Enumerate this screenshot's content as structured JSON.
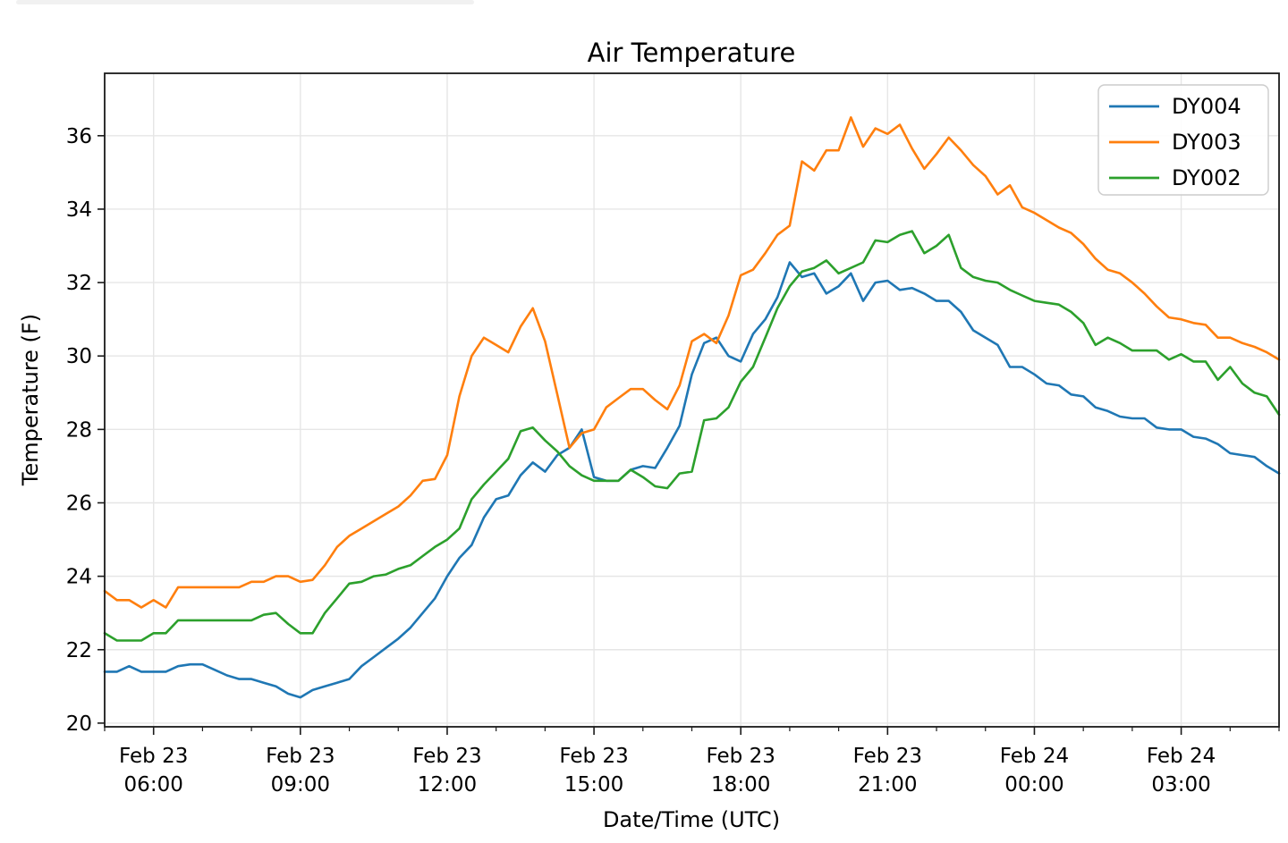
{
  "decoration": {
    "top_bar_color": "#f1f1f1"
  },
  "chart_data": {
    "type": "line",
    "title": "Air Temperature",
    "xlabel": "Date/Time (UTC)",
    "ylabel": "Temperature (F)",
    "grid": true,
    "grid_color": "#e6e6e6",
    "spine_color": "#1a1a1a",
    "background": "#ffffff",
    "xlim_hours": [
      5,
      29
    ],
    "ylim": [
      19.9,
      37.7
    ],
    "yticks": [
      20,
      22,
      24,
      26,
      28,
      30,
      32,
      34,
      36
    ],
    "xticks": [
      {
        "hour": 6,
        "line1": "Feb 23",
        "line2": "06:00"
      },
      {
        "hour": 9,
        "line1": "Feb 23",
        "line2": "09:00"
      },
      {
        "hour": 12,
        "line1": "Feb 23",
        "line2": "12:00"
      },
      {
        "hour": 15,
        "line1": "Feb 23",
        "line2": "15:00"
      },
      {
        "hour": 18,
        "line1": "Feb 23",
        "line2": "18:00"
      },
      {
        "hour": 21,
        "line1": "Feb 23",
        "line2": "21:00"
      },
      {
        "hour": 24,
        "line1": "Feb 24",
        "line2": "00:00"
      },
      {
        "hour": 27,
        "line1": "Feb 24",
        "line2": "03:00"
      }
    ],
    "minor_xtick_every_hours": 1,
    "x_start_hour": 5,
    "x_step_hours": 0.25,
    "x_start_label": "Feb 23 05:00 UTC",
    "x_end_label": "Feb 24 05:00 UTC",
    "legend": {
      "position": "upper-right",
      "entries": [
        {
          "label": "DY004",
          "color": "#1f77b4"
        },
        {
          "label": "DY003",
          "color": "#ff7f0e"
        },
        {
          "label": "DY002",
          "color": "#2ca02c"
        }
      ]
    },
    "series": [
      {
        "name": "DY004",
        "color": "#1f77b4",
        "values": [
          21.4,
          21.4,
          21.55,
          21.4,
          21.4,
          21.4,
          21.55,
          21.6,
          21.6,
          21.45,
          21.3,
          21.2,
          21.2,
          21.1,
          21.0,
          20.8,
          20.7,
          20.9,
          21.0,
          21.1,
          21.2,
          21.55,
          21.8,
          22.05,
          22.3,
          22.6,
          23.0,
          23.4,
          24.0,
          24.5,
          24.85,
          25.6,
          26.1,
          26.2,
          26.75,
          27.1,
          26.85,
          27.3,
          27.5,
          28.0,
          26.7,
          26.6,
          26.6,
          26.9,
          27.0,
          26.95,
          27.5,
          28.1,
          29.5,
          30.35,
          30.5,
          30.0,
          29.85,
          30.6,
          31.0,
          31.6,
          32.55,
          32.15,
          32.25,
          31.7,
          31.9,
          32.25,
          31.5,
          32.0,
          32.05,
          31.8,
          31.85,
          31.7,
          31.5,
          31.5,
          31.2,
          30.7,
          30.5,
          30.3,
          29.7,
          29.7,
          29.5,
          29.25,
          29.2,
          28.95,
          28.9,
          28.6,
          28.5,
          28.35,
          28.3,
          28.3,
          28.05,
          28.0,
          28.0,
          27.8,
          27.75,
          27.6,
          27.35,
          27.3,
          27.25,
          27.0,
          26.8
        ]
      },
      {
        "name": "DY003",
        "color": "#ff7f0e",
        "values": [
          23.6,
          23.35,
          23.35,
          23.15,
          23.35,
          23.15,
          23.7,
          23.7,
          23.7,
          23.7,
          23.7,
          23.7,
          23.85,
          23.85,
          24.0,
          24.0,
          23.85,
          23.9,
          24.3,
          24.8,
          25.1,
          25.3,
          25.5,
          25.7,
          25.9,
          26.2,
          26.6,
          26.65,
          27.3,
          28.9,
          30.0,
          30.5,
          30.3,
          30.1,
          30.8,
          31.3,
          30.4,
          28.95,
          27.5,
          27.9,
          28.0,
          28.6,
          28.85,
          29.1,
          29.1,
          28.8,
          28.55,
          29.2,
          30.4,
          30.6,
          30.35,
          31.1,
          32.2,
          32.35,
          32.8,
          33.3,
          33.55,
          35.3,
          35.05,
          35.6,
          35.6,
          36.5,
          35.7,
          36.2,
          36.05,
          36.3,
          35.65,
          35.1,
          35.5,
          35.95,
          35.6,
          35.2,
          34.9,
          34.4,
          34.65,
          34.05,
          33.9,
          33.7,
          33.5,
          33.35,
          33.05,
          32.65,
          32.35,
          32.25,
          32.0,
          31.7,
          31.35,
          31.05,
          31.0,
          30.9,
          30.85,
          30.5,
          30.5,
          30.35,
          30.25,
          30.1,
          29.9
        ]
      },
      {
        "name": "DY002",
        "color": "#2ca02c",
        "values": [
          22.45,
          22.25,
          22.25,
          22.25,
          22.45,
          22.45,
          22.8,
          22.8,
          22.8,
          22.8,
          22.8,
          22.8,
          22.8,
          22.95,
          23.0,
          22.7,
          22.45,
          22.45,
          23.0,
          23.4,
          23.8,
          23.85,
          24.0,
          24.05,
          24.2,
          24.3,
          24.55,
          24.8,
          25.0,
          25.3,
          26.1,
          26.5,
          26.85,
          27.2,
          27.95,
          28.05,
          27.7,
          27.4,
          27.0,
          26.75,
          26.6,
          26.6,
          26.6,
          26.9,
          26.7,
          26.45,
          26.4,
          26.8,
          26.85,
          28.25,
          28.3,
          28.6,
          29.3,
          29.7,
          30.5,
          31.3,
          31.9,
          32.3,
          32.4,
          32.6,
          32.25,
          32.4,
          32.55,
          33.15,
          33.1,
          33.3,
          33.4,
          32.8,
          33.0,
          33.3,
          32.4,
          32.15,
          32.05,
          32.0,
          31.8,
          31.65,
          31.5,
          31.45,
          31.4,
          31.2,
          30.9,
          30.3,
          30.5,
          30.35,
          30.15,
          30.15,
          30.15,
          29.9,
          30.05,
          29.85,
          29.85,
          29.35,
          29.7,
          29.25,
          29.0,
          28.9,
          28.4
        ]
      }
    ]
  }
}
